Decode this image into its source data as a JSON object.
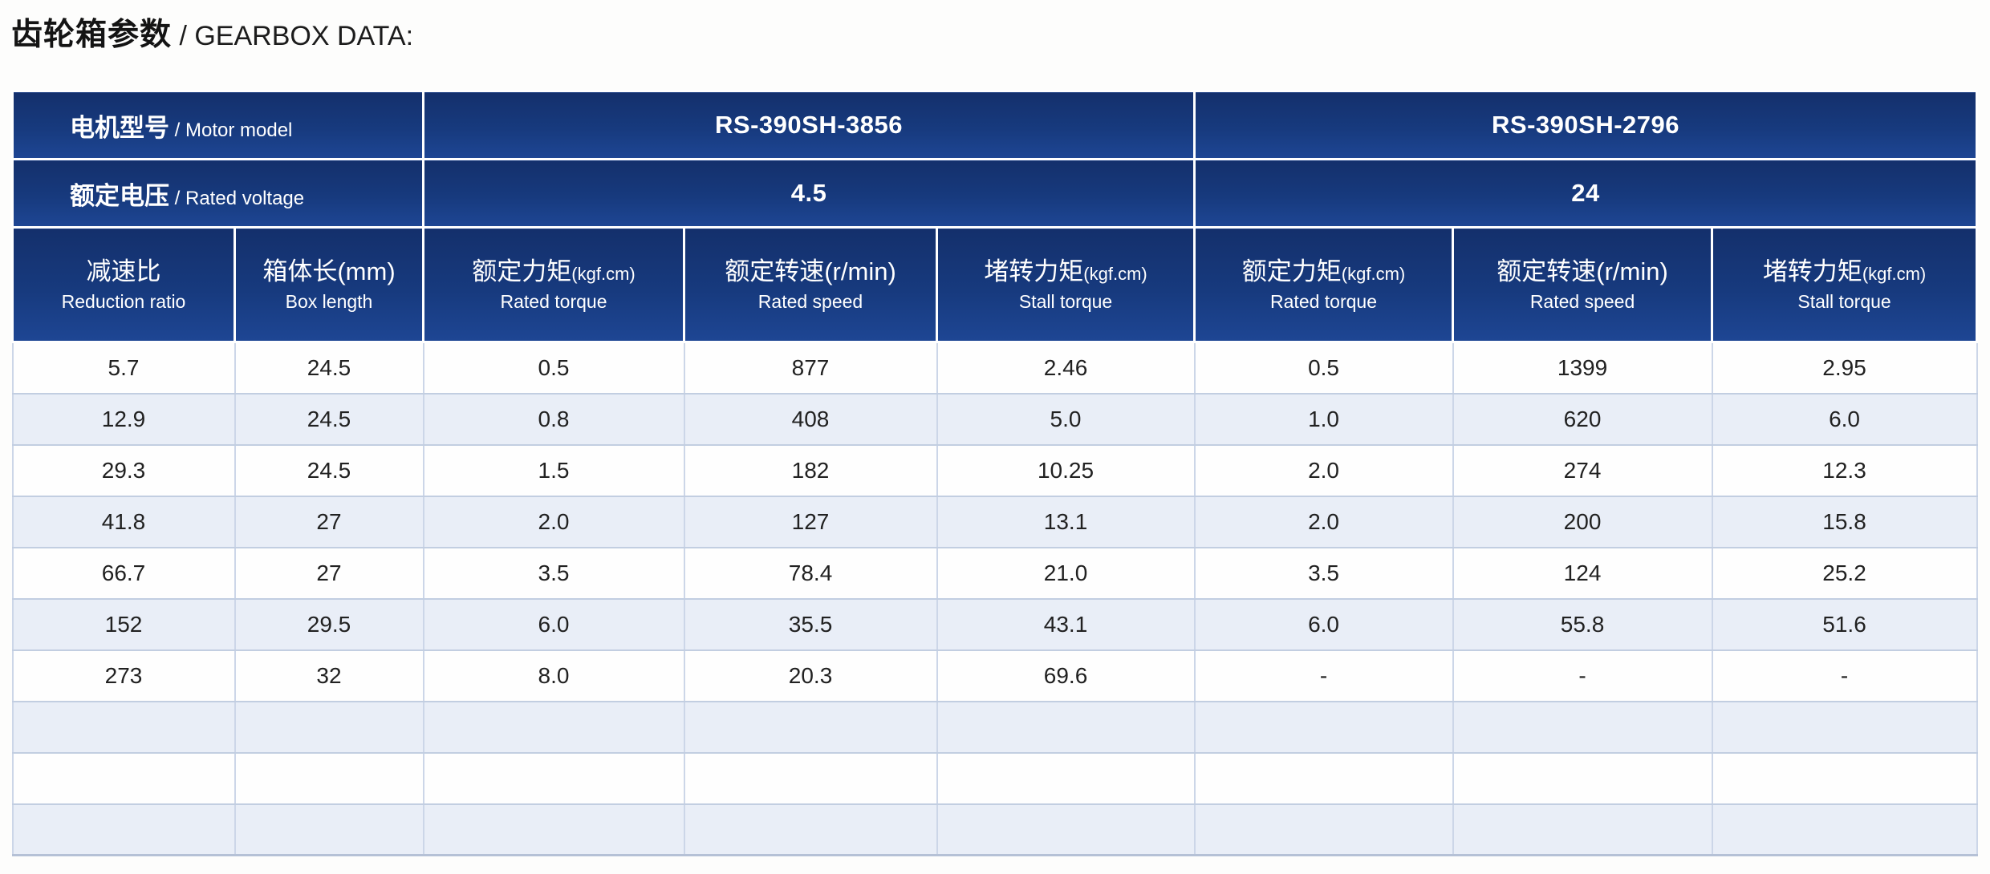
{
  "title": {
    "zh": "齿轮箱参数",
    "en": " / GEARBOX DATA:"
  },
  "table": {
    "motor_model_label": {
      "zh": "电机型号",
      "en": " / Motor model"
    },
    "rated_voltage_label": {
      "zh": "额定电压",
      "en": " / Rated voltage"
    },
    "models": [
      {
        "name": "RS-390SH-3856",
        "voltage": "4.5"
      },
      {
        "name": "RS-390SH-2796",
        "voltage": "24"
      }
    ],
    "columns": [
      {
        "zh": "减速比",
        "unit": "",
        "en": "Reduction ratio"
      },
      {
        "zh": "箱体长(mm)",
        "unit": "",
        "en": "Box length"
      },
      {
        "zh": "额定力矩",
        "unit": "(kgf.cm)",
        "en": "Rated torque"
      },
      {
        "zh": "额定转速(r/min)",
        "unit": "",
        "en": "Rated speed"
      },
      {
        "zh": "堵转力矩",
        "unit": "(kgf.cm)",
        "en": "Stall torque"
      },
      {
        "zh": "额定力矩",
        "unit": "(kgf.cm)",
        "en": "Rated torque"
      },
      {
        "zh": "额定转速(r/min)",
        "unit": "",
        "en": "Rated speed"
      },
      {
        "zh": "堵转力矩",
        "unit": "(kgf.cm)",
        "en": "Stall torque"
      }
    ],
    "rows": [
      [
        "5.7",
        "24.5",
        "0.5",
        "877",
        "2.46",
        "0.5",
        "1399",
        "2.95"
      ],
      [
        "12.9",
        "24.5",
        "0.8",
        "408",
        "5.0",
        "1.0",
        "620",
        "6.0"
      ],
      [
        "29.3",
        "24.5",
        "1.5",
        "182",
        "10.25",
        "2.0",
        "274",
        "12.3"
      ],
      [
        "41.8",
        "27",
        "2.0",
        "127",
        "13.1",
        "2.0",
        "200",
        "15.8"
      ],
      [
        "66.7",
        "27",
        "3.5",
        "78.4",
        "21.0",
        "3.5",
        "124",
        "25.2"
      ],
      [
        "152",
        "29.5",
        "6.0",
        "35.5",
        "43.1",
        "6.0",
        "55.8",
        "51.6"
      ],
      [
        "273",
        "32",
        "8.0",
        "20.3",
        "69.6",
        "-",
        "-",
        "-"
      ],
      [
        "",
        "",
        "",
        "",
        "",
        "",
        "",
        ""
      ],
      [
        "",
        "",
        "",
        "",
        "",
        "",
        "",
        ""
      ],
      [
        "",
        "",
        "",
        "",
        "",
        "",
        "",
        ""
      ]
    ],
    "colors": {
      "header_blue_top": "#14306c",
      "header_blue_bottom": "#1e4694",
      "row_alt_blue": "#e9eef7",
      "grid_line": "#ccd6e8"
    }
  }
}
